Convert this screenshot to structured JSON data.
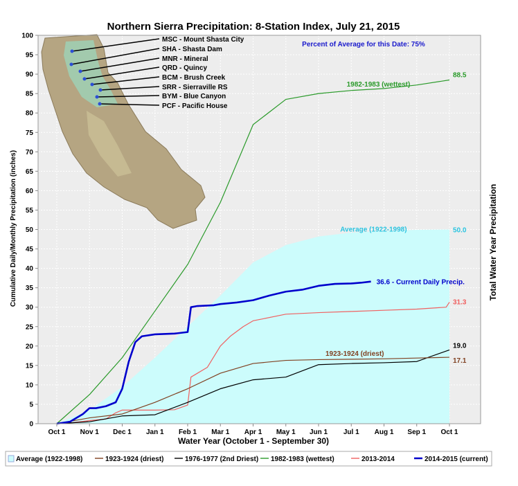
{
  "chart_data": {
    "type": "line",
    "title": "Northern Sierra Precipitation: 8-Station Index, July 21, 2015",
    "xlabel": "Water Year (October 1 - September 30)",
    "ylabel": "Cumulative Daily/Monthly Precipitation (inches)",
    "y2label": "Total Water Year Precipitation",
    "ylim": [
      0,
      100
    ],
    "yticks": [
      0,
      5,
      10,
      15,
      20,
      25,
      30,
      35,
      40,
      45,
      50,
      55,
      60,
      65,
      70,
      75,
      80,
      85,
      90,
      95,
      100
    ],
    "x_range": [
      "Oct 1",
      "Oct 1"
    ],
    "xticks": [
      "Oct 1",
      "Nov 1",
      "Dec 1",
      "Jan 1",
      "Feb 1",
      "Mar 1",
      "Apr 1",
      "May 1",
      "Jun 1",
      "Jul 1",
      "Aug 1",
      "Sep 1",
      "Oct 1"
    ],
    "grid": true,
    "legend_position": "bottom",
    "percent_of_average": "Percent of Average for this Date: 75%",
    "series": [
      {
        "name": "Average (1922-1998)",
        "color": "#ccfcfc",
        "style": "area",
        "x": [
          0,
          1,
          2,
          3,
          4,
          5,
          6,
          7,
          8,
          9,
          10,
          11,
          12
        ],
        "values": [
          0,
          3.5,
          9.5,
          17,
          25,
          33,
          41.5,
          46,
          48.2,
          49.2,
          49.6,
          49.9,
          50.0
        ],
        "end_label": "50.0",
        "annotation": "Average (1922-1998)"
      },
      {
        "name": "1923-1924 (driest)",
        "color": "#804020",
        "style": "line",
        "x": [
          0,
          1,
          2,
          3,
          4,
          5,
          6,
          7,
          8,
          9,
          10,
          11,
          12
        ],
        "values": [
          0,
          1.5,
          2.5,
          5.5,
          9,
          13,
          15.5,
          16.3,
          16.5,
          16.6,
          16.7,
          16.9,
          17.1
        ],
        "end_label": "17.1",
        "annotation": "1923-1924 (driest)"
      },
      {
        "name": "1976-1977 (2nd Driest)",
        "color": "#000000",
        "style": "line",
        "x": [
          0,
          1,
          2,
          3,
          4,
          5,
          6,
          7,
          8,
          9,
          10,
          11,
          12
        ],
        "values": [
          0,
          0.5,
          2.0,
          2.3,
          5.5,
          9,
          11.3,
          12,
          15.2,
          15.5,
          15.7,
          16,
          19.0
        ],
        "end_label": "19.0"
      },
      {
        "name": "1982-1983 (wettest)",
        "color": "#2a9a2a",
        "style": "line",
        "x": [
          0,
          1,
          2,
          3,
          4,
          5,
          6,
          7,
          8,
          9,
          10,
          11,
          12
        ],
        "values": [
          0,
          7.5,
          17,
          29,
          41,
          57,
          77,
          83.5,
          85,
          85.8,
          86.3,
          87.2,
          88.5
        ],
        "end_label": "88.5",
        "annotation": "1982-1983 (wettest)"
      },
      {
        "name": "2013-2014",
        "color": "#f06060",
        "style": "line",
        "x": [
          0,
          0.5,
          1,
          1.5,
          1.8,
          2,
          3,
          3.6,
          4,
          4.1,
          4.3,
          4.6,
          5,
          5.3,
          5.7,
          6,
          6.3,
          7,
          8,
          9,
          10,
          11,
          11.9,
          12
        ],
        "values": [
          0,
          0.3,
          0.8,
          1.2,
          2.8,
          3.5,
          3.5,
          3.6,
          4.8,
          12,
          13,
          14.5,
          20,
          22.5,
          25,
          26.5,
          27,
          28.2,
          28.6,
          28.9,
          29.2,
          29.5,
          30,
          31.3
        ],
        "end_label": "31.3"
      },
      {
        "name": "2014-2015 (current)",
        "color": "#0000cc",
        "style": "line",
        "x": [
          0,
          0.4,
          0.6,
          0.8,
          1.0,
          1.2,
          1.5,
          1.8,
          2.0,
          2.2,
          2.4,
          2.6,
          3,
          3.6,
          4.0,
          4.1,
          4.3,
          4.8,
          5.0,
          5.5,
          6.0,
          6.5,
          7.0,
          7.5,
          8.0,
          8.5,
          9.0,
          9.3,
          9.6
        ],
        "values": [
          0,
          0.5,
          1.5,
          2.5,
          4,
          4,
          4.5,
          5.5,
          9,
          16,
          21,
          22.5,
          23,
          23.2,
          23.6,
          30,
          30.3,
          30.5,
          30.8,
          31.2,
          31.8,
          33,
          34,
          34.5,
          35.5,
          36,
          36.1,
          36.3,
          36.6
        ],
        "end_label": "36.6 - Current Daily Precip."
      }
    ],
    "map_stations": [
      "MSC - Mount Shasta City",
      "SHA - Shasta Dam",
      "MNR - Mineral",
      "QRD - Quincy",
      "BCM - Brush Creek",
      "SRR - Sierraville RS",
      "BYM - Blue Canyon",
      "PCF - Pacific House"
    ],
    "legend": [
      "Average (1922-1998)",
      "1923-1924 (driest)",
      "1976-1977 (2nd Driest)",
      "1982-1983 (wettest)",
      "2013-2014",
      "2014-2015 (current)"
    ]
  }
}
